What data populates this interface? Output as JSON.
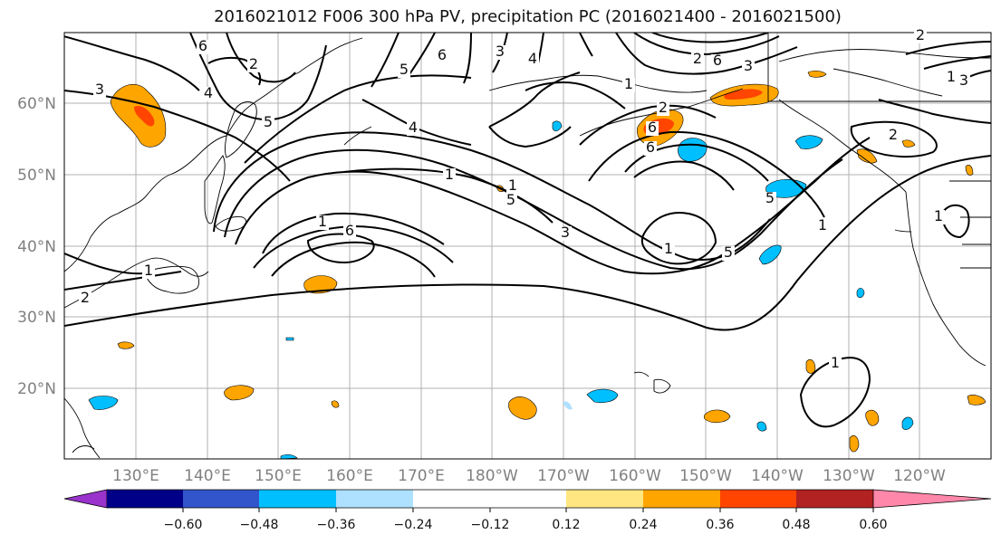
{
  "title": "2016021012 F006 300 hPa PV, precipitation PC (2016021400 - 2016021500)",
  "map": {
    "projection": "equirectangular",
    "lon_range": [
      120,
      250
    ],
    "lat_range": [
      10,
      70
    ],
    "lat_labels": [
      "20°N",
      "30°N",
      "40°N",
      "50°N",
      "60°N"
    ],
    "lon_labels": [
      "130°E",
      "140°E",
      "150°E",
      "160°E",
      "170°E",
      "180°W",
      "170°W",
      "160°W",
      "150°W",
      "140°W",
      "130°W",
      "120°W"
    ],
    "grid": true,
    "background_color": "#ffffff",
    "coastline_color": "#000000",
    "contour_color": "#000000"
  },
  "contour_labels": [
    "3",
    "6",
    "4",
    "5",
    "1",
    "2",
    "6",
    "1",
    "4",
    "3",
    "1",
    "6",
    "5",
    "3",
    "4",
    "5",
    "1",
    "2",
    "6",
    "5",
    "6",
    "1",
    "5",
    "6",
    "2",
    "1",
    "1",
    "2",
    "1",
    "3",
    "1",
    "2",
    "2",
    "3",
    "1"
  ],
  "colorbar": {
    "ticks": [
      "−0.60",
      "−0.48",
      "−0.36",
      "−0.24",
      "−0.12",
      "0.12",
      "0.24",
      "0.36",
      "0.48",
      "0.60"
    ],
    "under_color": "#9933cc",
    "over_color": "#ff88aa",
    "colors": [
      "#000088",
      "#3355cc",
      "#00bfff",
      "#aee0ff",
      "#ffffff",
      "#ffffff",
      "#ffe680",
      "#ffa500",
      "#ff4500",
      "#b22222"
    ]
  }
}
